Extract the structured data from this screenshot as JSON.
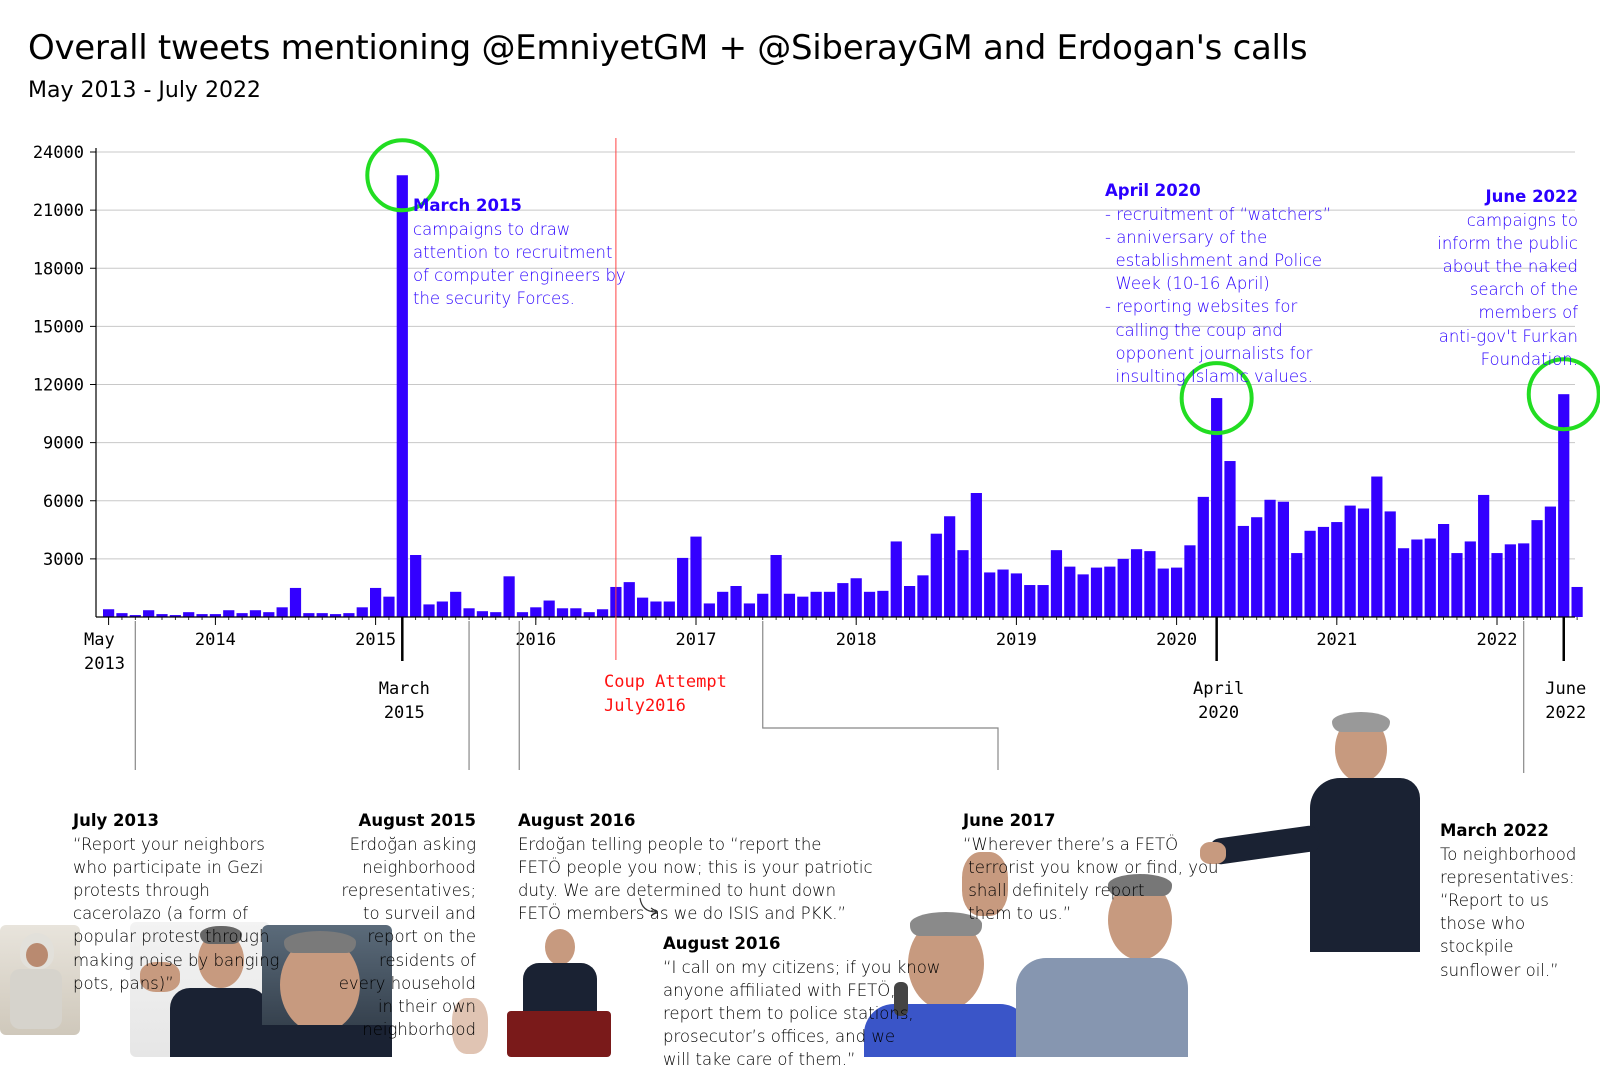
{
  "title": "Overall tweets mentioning @EmniyetGM + @SiberayGM and Erdogan's calls",
  "subtitle": "May 2013  - July 2022",
  "colors": {
    "bar": "#3300ff",
    "highlight_circle": "#22dd22",
    "coup_line": "#ff4444",
    "annotation_blue": "#2a00ff"
  },
  "chart_data": {
    "type": "bar",
    "title": "Overall tweets mentioning @EmniyetGM + @SiberayGM and Erdogan's calls",
    "ylim": [
      0,
      24000
    ],
    "yticks": [
      "24000",
      "21000",
      "18000",
      "15000",
      "12000",
      "9000",
      "6000",
      "3000"
    ],
    "xticks": [
      {
        "label": "May\n2013",
        "index": 0
      },
      {
        "label": "2014",
        "index": 8
      },
      {
        "label": "2015",
        "index": 20
      },
      {
        "label": "2016",
        "index": 32
      },
      {
        "label": "2017",
        "index": 44
      },
      {
        "label": "2018",
        "index": 56
      },
      {
        "label": "2019",
        "index": 68
      },
      {
        "label": "2020",
        "index": 80
      },
      {
        "label": "2021",
        "index": 92
      },
      {
        "label": "2022",
        "index": 104
      }
    ],
    "grid": true,
    "series": [
      {
        "values": [
          400,
          200,
          100,
          350,
          150,
          100,
          250,
          150,
          150,
          350,
          200,
          350,
          250,
          500,
          1500,
          200,
          200,
          150,
          200,
          500,
          1500,
          1050,
          22800,
          3200,
          650,
          800,
          1300,
          450,
          300,
          250,
          2100,
          250,
          500,
          850,
          450,
          450,
          250,
          400,
          1550,
          1800,
          1000,
          800,
          800,
          3050,
          4150,
          700,
          1300,
          1600,
          700,
          1200,
          3200,
          1200,
          1050,
          1300,
          1300,
          1750,
          2000,
          1300,
          1350,
          3900,
          1600,
          2150,
          4300,
          5200,
          3450,
          6400,
          2300,
          2450,
          2250,
          1650,
          1650,
          3450,
          2600,
          2200,
          2550,
          2600,
          3000,
          3500,
          3400,
          2500,
          2550,
          3700,
          6200,
          11300,
          8050,
          4700,
          5150,
          6050,
          5950,
          3300,
          4450,
          4650,
          4900,
          5750,
          5600,
          7250,
          5450,
          3550,
          4000,
          4050,
          4800,
          3300,
          3900,
          6300,
          3300,
          3750,
          3800,
          5000,
          5700,
          11500,
          1550
        ]
      }
    ],
    "highlights": [
      {
        "label": "March\n2015",
        "index": 22
      },
      {
        "label": "April\n2020",
        "index": 83
      },
      {
        "label": "June\n2022",
        "index": 109
      }
    ],
    "coup_marker": {
      "label": "Coup Attempt\nJuly2016",
      "index": 38
    }
  },
  "blue_annotations": {
    "march2015": {
      "head": "March 2015",
      "body": "campaigns to draw\nattention to recruitment\nof computer engineers by\nthe security Forces."
    },
    "april2020": {
      "head": "April 2020",
      "body": "- recruitment of “watchers”\n- anniversary of the\n  establishment and Police\n  Week (10-16 April)\n- reporting websites for\n  calling the coup and\n  opponent journalists for\n  insulting Islamic values."
    },
    "june2022": {
      "head": "June 2022",
      "body": "campaigns to\ninform the public\nabout the naked\nsearch of the\nmembers of\nanti-gov't Furkan\nFoundation."
    }
  },
  "bottom_annotations": {
    "july2013": {
      "head": "July 2013",
      "body": "“Report your neighbors\nwho participate in Gezi\nprotests through\ncacerolazo (a form of\npopular protest through\nmaking noise by banging\npots, pans)”"
    },
    "aug2015": {
      "head": "August 2015",
      "body": "Erdoğan asking\nneighborhood\nrepresentatives;\nto surveil and\nreport on the\nresidents of\nevery household\nin their own\nneighborhood"
    },
    "aug2016a": {
      "head": "August 2016",
      "body": "Erdoğan telling people to “report the\nFETÖ people you now; this is your patriotic\nduty. We are determined to hunt down\nFETÖ members as we do ISIS and PKK.”"
    },
    "aug2016b": {
      "head": "August 2016",
      "body": "“I call on my citizens; if you know\nanyone affiliated with FETÖ,\nreport them to police stations,\nprosecutor’s offices, and we\nwill take care of them.”"
    },
    "june2017": {
      "head": "June 2017",
      "body": "“Wherever there’s a FETÖ\n terrorist you know or find, you\n shall definitely report\n them to us.”"
    },
    "march2022": {
      "head": "March 2022",
      "body": "To neighborhood\nrepresentatives:\n“Report to us\nthose who\nstockpile\nsunflower oil.”"
    }
  }
}
